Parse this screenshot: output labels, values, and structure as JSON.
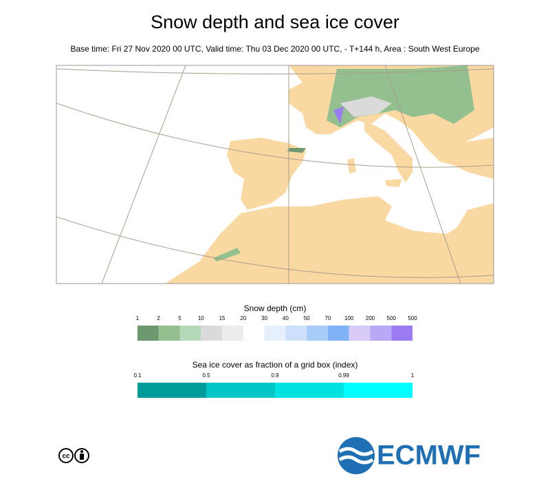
{
  "header": {
    "title": "Snow depth and sea ice cover",
    "subtitle": "Base time: Fri 27 Nov 2020 00 UTC, Valid time: Thu 03 Dec 2020 00 UTC, - T+144 h, Area : South West Europe"
  },
  "snow_legend": {
    "title": "Snow depth (cm)",
    "ticks": [
      "1",
      "2",
      "5",
      "10",
      "15",
      "20",
      "30",
      "40",
      "50",
      "70",
      "100",
      "200",
      "500",
      "500"
    ],
    "colors": [
      "#6e9970",
      "#94bf8f",
      "#b5d9b8",
      "#dadada",
      "#ececec",
      null,
      "#e6f0fd",
      "#cde0fb",
      "#a8ccf8",
      "#7fb3f5",
      "#d9cbf8",
      "#b9a8f5",
      "#9b7cf2"
    ]
  },
  "ice_legend": {
    "title": "Sea ice cover as fraction of a grid box (index)",
    "ticks": [
      "0.1",
      "0.5",
      "0.9",
      "0.99",
      "1"
    ],
    "colors": [
      "#009b9b",
      "#00c6c6",
      "#00e2e2",
      "#00ffff"
    ]
  },
  "footer": {
    "license": "cc",
    "logo": "ECMWF"
  }
}
